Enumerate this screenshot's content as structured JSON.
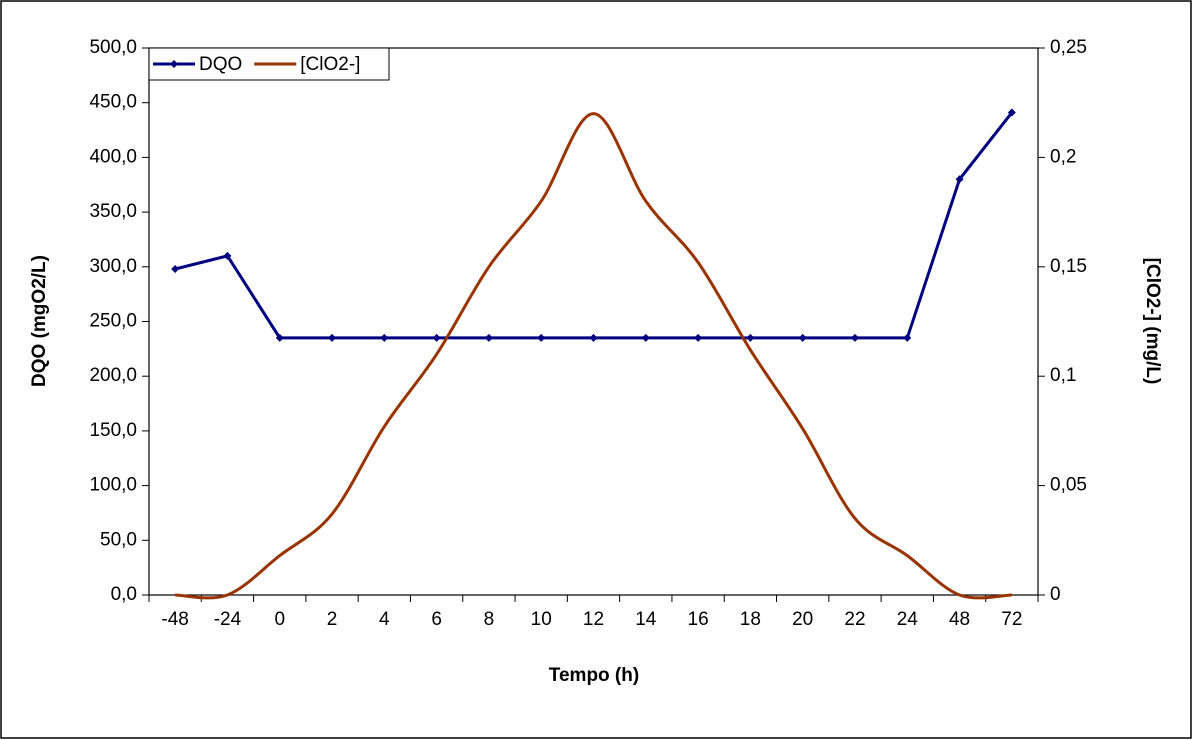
{
  "chart_data": {
    "type": "line",
    "xlabel": "Tempo (h)",
    "ylabel": "DQO (mgO2/L)",
    "y2label": "[ClO2-] (mg/L)",
    "categories": [
      "-48",
      "-24",
      "0",
      "2",
      "4",
      "6",
      "8",
      "10",
      "12",
      "14",
      "16",
      "18",
      "20",
      "22",
      "24",
      "48",
      "72"
    ],
    "series": [
      {
        "name": "DQO",
        "color": "#000080",
        "values": [
          298,
          310,
          235,
          235,
          235,
          235,
          235,
          235,
          235,
          235,
          235,
          235,
          235,
          235,
          235,
          380,
          441
        ]
      },
      {
        "name": "[ClO2-]",
        "color": "#993300",
        "axis": "y2",
        "smooth": true,
        "values": [
          0,
          0,
          0.018,
          0.037,
          0.077,
          0.11,
          0.15,
          0.18,
          0.22,
          0.18,
          0.152,
          0.112,
          0.076,
          0.035,
          0.018,
          0,
          0
        ]
      }
    ],
    "ylim": [
      0,
      500
    ],
    "yticks": [
      {
        "value": 0,
        "label": "0,0"
      },
      {
        "value": 50,
        "label": "50,0"
      },
      {
        "value": 100,
        "label": "100,0"
      },
      {
        "value": 150,
        "label": "150,0"
      },
      {
        "value": 200,
        "label": "200,0"
      },
      {
        "value": 250,
        "label": "250,0"
      },
      {
        "value": 300,
        "label": "300,0"
      },
      {
        "value": 350,
        "label": "350,0"
      },
      {
        "value": 400,
        "label": "400,0"
      },
      {
        "value": 450,
        "label": "450,0"
      },
      {
        "value": 500,
        "label": "500,0"
      }
    ],
    "y2lim": [
      0,
      0.25
    ],
    "y2ticks": [
      0,
      {
        "value": 0.05,
        "label": "0,05"
      },
      {
        "value": 0.1,
        "label": "0,1"
      },
      {
        "value": 0.15,
        "label": "0,15"
      },
      {
        "value": 0.2,
        "label": "0,2"
      },
      {
        "value": 0.25,
        "label": "0,25"
      }
    ],
    "legend": "top-left"
  }
}
